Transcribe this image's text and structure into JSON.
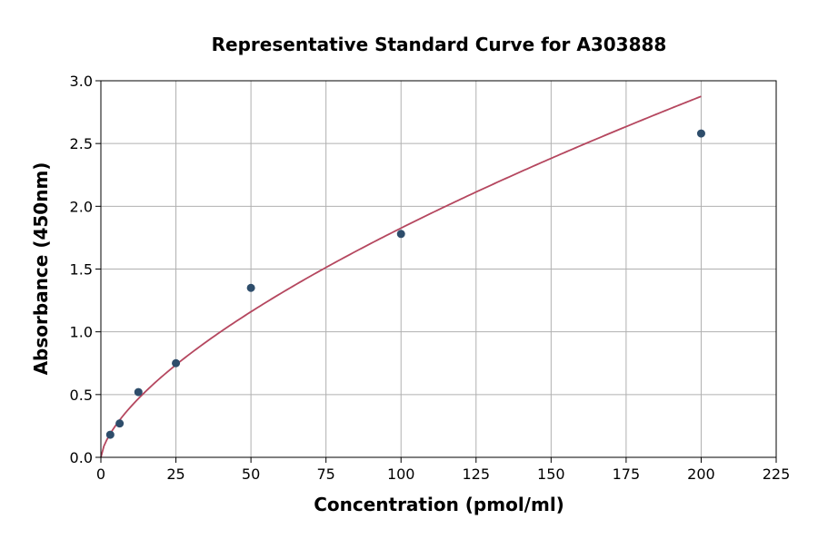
{
  "chart_data": {
    "type": "scatter",
    "title": "Representative Standard Curve for A303888",
    "xlabel": "Concentration (pmol/ml)",
    "ylabel": "Absorbance (450nm)",
    "xlim": [
      0,
      225
    ],
    "ylim": [
      0,
      3.0
    ],
    "x_ticks": [
      "0",
      "25",
      "50",
      "75",
      "100",
      "125",
      "150",
      "175",
      "200",
      "225"
    ],
    "y_ticks": [
      "0.0",
      "0.5",
      "1.0",
      "1.5",
      "2.0",
      "2.5",
      "3.0"
    ],
    "grid": true,
    "legend": "none",
    "series": [
      {
        "points": [
          {
            "x": 3.125,
            "y": 0.18
          },
          {
            "x": 6.25,
            "y": 0.27
          },
          {
            "x": 12.5,
            "y": 0.52
          },
          {
            "x": 25,
            "y": 0.75
          },
          {
            "x": 50,
            "y": 1.35
          },
          {
            "x": 100,
            "y": 1.78
          },
          {
            "x": 200,
            "y": 2.58
          }
        ],
        "color": "#2e4d6b"
      }
    ],
    "fit_curve": {
      "color": "#b5475f",
      "x_range": [
        0,
        200
      ]
    }
  }
}
